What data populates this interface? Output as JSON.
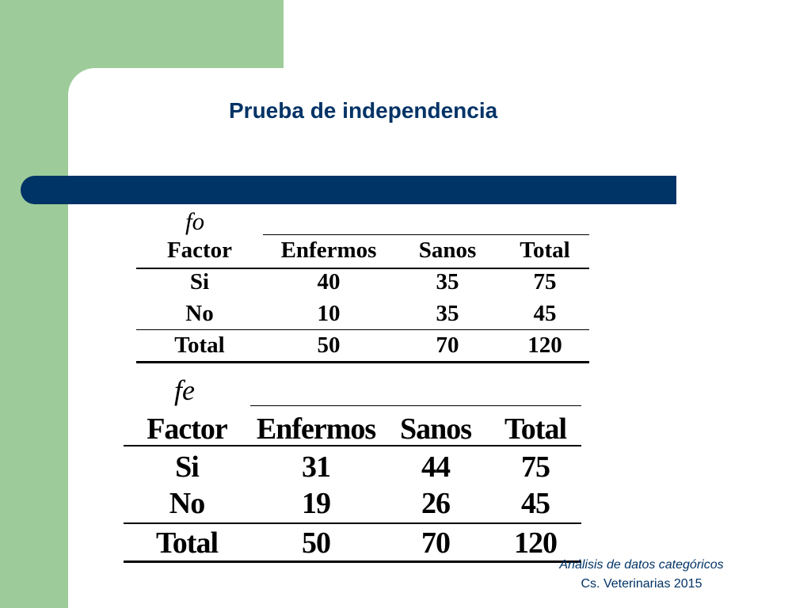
{
  "slide": {
    "title": "Prueba de independencia",
    "colors": {
      "green_band": "#9dcc9a",
      "accent_blue": "#003366"
    }
  },
  "observed_table": {
    "label": "fo",
    "headers": [
      "Factor",
      "Enfermos",
      "Sanos",
      "Total"
    ],
    "rows": [
      [
        "Si",
        "40",
        "35",
        "75"
      ],
      [
        "No",
        "10",
        "35",
        "45"
      ]
    ],
    "total_row": [
      "Total",
      "50",
      "70",
      "120"
    ]
  },
  "expected_table": {
    "label": "fe",
    "headers": [
      "Factor",
      "Enfermos",
      "Sanos",
      "Total"
    ],
    "rows": [
      [
        "Si",
        "31",
        "44",
        "75"
      ],
      [
        "No",
        "19",
        "26",
        "45"
      ]
    ],
    "total_row": [
      "Total",
      "50",
      "70",
      "120"
    ]
  },
  "footer": {
    "line1": "Análisis de datos categóricos",
    "line2": "Cs. Veterinarias   2015"
  }
}
